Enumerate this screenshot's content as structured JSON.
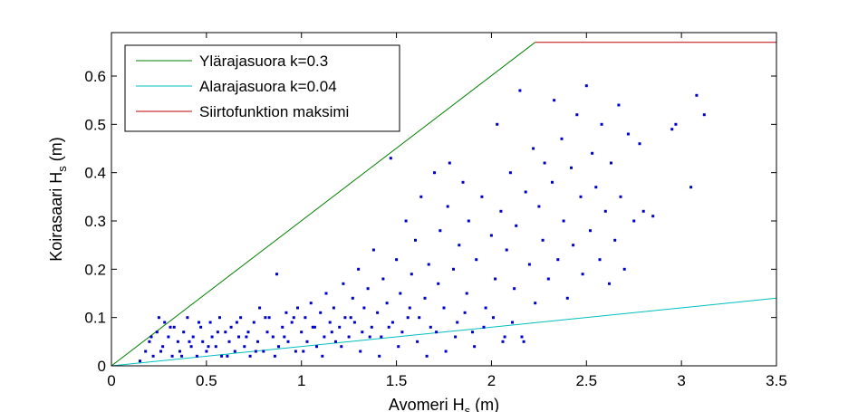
{
  "chart_data": {
    "type": "scatter",
    "title": "",
    "xlabel": "Avomeri H",
    "xlabel_sub": "s",
    "xlabel_unit": " (m)",
    "ylabel": "Koirasaari H",
    "ylabel_sub": "s",
    "ylabel_unit": " (m)",
    "xlim": [
      0,
      3.5
    ],
    "ylim": [
      0,
      0.69
    ],
    "xticks": [
      0,
      0.5,
      1,
      1.5,
      2,
      2.5,
      3,
      3.5
    ],
    "xtick_labels": [
      "0",
      "0.5",
      "1",
      "1.5",
      "2",
      "2.5",
      "3",
      "3.5"
    ],
    "yticks": [
      0,
      0.1,
      0.2,
      0.3,
      0.4,
      0.5,
      0.6
    ],
    "ytick_labels": [
      "0",
      "0.1",
      "0.2",
      "0.3",
      "0.4",
      "0.5",
      "0.6"
    ],
    "grid": false,
    "legend_position": "top-left",
    "legend": [
      {
        "name": "Ylärajasuora k=0.3",
        "color": "#008000"
      },
      {
        "name": "Alarajasuora k=0.04",
        "color": "#00BFBF"
      },
      {
        "name": "Siirtofunktion maksimi",
        "color": "#BF0000"
      }
    ],
    "series": [
      {
        "name": "Ylärajasuora k=0.3",
        "type": "line",
        "color": "#008000",
        "points": [
          [
            0,
            0
          ],
          [
            2.23,
            0.67
          ]
        ]
      },
      {
        "name": "Alarajasuora k=0.04",
        "type": "line",
        "color": "#00BFBF",
        "points": [
          [
            0,
            0
          ],
          [
            3.5,
            0.14
          ]
        ]
      },
      {
        "name": "Siirtofunktion maksimi",
        "type": "line",
        "color": "#BF0000",
        "points": [
          [
            2.23,
            0.67
          ],
          [
            3.5,
            0.67
          ]
        ]
      }
    ],
    "scatter": {
      "color": "#0000CC",
      "points": [
        [
          0.15,
          0.01
        ],
        [
          0.18,
          0.03
        ],
        [
          0.2,
          0.05
        ],
        [
          0.22,
          0.02
        ],
        [
          0.24,
          0.07
        ],
        [
          0.25,
          0.1
        ],
        [
          0.27,
          0.04
        ],
        [
          0.28,
          0.09
        ],
        [
          0.3,
          0.06
        ],
        [
          0.32,
          0.02
        ],
        [
          0.33,
          0.08
        ],
        [
          0.35,
          0.05
        ],
        [
          0.36,
          0.03
        ],
        [
          0.38,
          0.07
        ],
        [
          0.4,
          0.1
        ],
        [
          0.42,
          0.04
        ],
        [
          0.43,
          0.06
        ],
        [
          0.45,
          0.02
        ],
        [
          0.47,
          0.08
        ],
        [
          0.48,
          0.05
        ],
        [
          0.5,
          0.03
        ],
        [
          0.52,
          0.09
        ],
        [
          0.53,
          0.06
        ],
        [
          0.55,
          0.04
        ],
        [
          0.57,
          0.1
        ],
        [
          0.58,
          0.02
        ],
        [
          0.6,
          0.07
        ],
        [
          0.62,
          0.05
        ],
        [
          0.63,
          0.08
        ],
        [
          0.65,
          0.03
        ],
        [
          0.67,
          0.06
        ],
        [
          0.68,
          0.1
        ],
        [
          0.7,
          0.04
        ],
        [
          0.72,
          0.07
        ],
        [
          0.73,
          0.02
        ],
        [
          0.75,
          0.09
        ],
        [
          0.77,
          0.05
        ],
        [
          0.78,
          0.12
        ],
        [
          0.8,
          0.03
        ],
        [
          0.82,
          0.07
        ],
        [
          0.83,
          0.1
        ],
        [
          0.85,
          0.06
        ],
        [
          0.87,
          0.19
        ],
        [
          0.88,
          0.04
        ],
        [
          0.9,
          0.08
        ],
        [
          0.92,
          0.11
        ],
        [
          0.93,
          0.05
        ],
        [
          0.95,
          0.09
        ],
        [
          0.97,
          0.03
        ],
        [
          0.98,
          0.12
        ],
        [
          1.0,
          0.07
        ],
        [
          1.02,
          0.1
        ],
        [
          1.03,
          0.05
        ],
        [
          1.05,
          0.13
        ],
        [
          1.07,
          0.08
        ],
        [
          1.08,
          0.04
        ],
        [
          1.1,
          0.11
        ],
        [
          1.12,
          0.06
        ],
        [
          1.13,
          0.15
        ],
        [
          1.15,
          0.09
        ],
        [
          1.17,
          0.12
        ],
        [
          1.18,
          0.05
        ],
        [
          1.2,
          0.08
        ],
        [
          1.22,
          0.17
        ],
        [
          1.23,
          0.1
        ],
        [
          1.25,
          0.06
        ],
        [
          1.27,
          0.14
        ],
        [
          1.28,
          0.09
        ],
        [
          1.3,
          0.2
        ],
        [
          1.32,
          0.07
        ],
        [
          1.33,
          0.12
        ],
        [
          1.35,
          0.16
        ],
        [
          1.37,
          0.08
        ],
        [
          1.38,
          0.24
        ],
        [
          1.4,
          0.11
        ],
        [
          1.42,
          0.06
        ],
        [
          1.43,
          0.18
        ],
        [
          1.45,
          0.13
        ],
        [
          1.47,
          0.43
        ],
        [
          1.48,
          0.09
        ],
        [
          1.5,
          0.22
        ],
        [
          1.52,
          0.15
        ],
        [
          1.53,
          0.07
        ],
        [
          1.55,
          0.3
        ],
        [
          1.57,
          0.12
        ],
        [
          1.58,
          0.19
        ],
        [
          1.6,
          0.26
        ],
        [
          1.62,
          0.1
        ],
        [
          1.63,
          0.35
        ],
        [
          1.65,
          0.14
        ],
        [
          1.67,
          0.21
        ],
        [
          1.68,
          0.08
        ],
        [
          1.7,
          0.4
        ],
        [
          1.72,
          0.17
        ],
        [
          1.73,
          0.28
        ],
        [
          1.75,
          0.12
        ],
        [
          1.77,
          0.33
        ],
        [
          1.78,
          0.42
        ],
        [
          1.8,
          0.2
        ],
        [
          1.82,
          0.09
        ],
        [
          1.83,
          0.25
        ],
        [
          1.85,
          0.38
        ],
        [
          1.87,
          0.15
        ],
        [
          1.88,
          0.3
        ],
        [
          1.9,
          0.07
        ],
        [
          1.92,
          0.22
        ],
        [
          1.95,
          0.35
        ],
        [
          1.97,
          0.12
        ],
        [
          2.0,
          0.27
        ],
        [
          2.02,
          0.18
        ],
        [
          2.03,
          0.5
        ],
        [
          2.05,
          0.32
        ],
        [
          2.07,
          0.06
        ],
        [
          2.08,
          0.24
        ],
        [
          2.1,
          0.4
        ],
        [
          2.12,
          0.16
        ],
        [
          2.13,
          0.29
        ],
        [
          2.15,
          0.57
        ],
        [
          2.17,
          0.05
        ],
        [
          2.18,
          0.36
        ],
        [
          2.2,
          0.21
        ],
        [
          2.22,
          0.45
        ],
        [
          2.23,
          0.13
        ],
        [
          2.25,
          0.33
        ],
        [
          2.27,
          0.26
        ],
        [
          2.28,
          0.42
        ],
        [
          2.3,
          0.18
        ],
        [
          2.32,
          0.38
        ],
        [
          2.33,
          0.55
        ],
        [
          2.35,
          0.22
        ],
        [
          2.37,
          0.47
        ],
        [
          2.38,
          0.3
        ],
        [
          2.4,
          0.14
        ],
        [
          2.42,
          0.41
        ],
        [
          2.43,
          0.25
        ],
        [
          2.45,
          0.52
        ],
        [
          2.47,
          0.35
        ],
        [
          2.48,
          0.19
        ],
        [
          2.5,
          0.58
        ],
        [
          2.52,
          0.28
        ],
        [
          2.53,
          0.44
        ],
        [
          2.55,
          0.37
        ],
        [
          2.57,
          0.22
        ],
        [
          2.58,
          0.5
        ],
        [
          2.6,
          0.32
        ],
        [
          2.62,
          0.17
        ],
        [
          2.63,
          0.42
        ],
        [
          2.65,
          0.26
        ],
        [
          2.67,
          0.54
        ],
        [
          2.68,
          0.35
        ],
        [
          2.7,
          0.2
        ],
        [
          2.72,
          0.48
        ],
        [
          2.75,
          0.3
        ],
        [
          2.78,
          0.46
        ],
        [
          2.8,
          0.32
        ],
        [
          2.85,
          0.31
        ],
        [
          2.95,
          0.49
        ],
        [
          2.97,
          0.5
        ],
        [
          3.05,
          0.37
        ],
        [
          3.08,
          0.56
        ],
        [
          3.12,
          0.52
        ],
        [
          0.21,
          0.06
        ],
        [
          0.26,
          0.03
        ],
        [
          0.31,
          0.08
        ],
        [
          0.37,
          0.02
        ],
        [
          0.41,
          0.05
        ],
        [
          0.46,
          0.09
        ],
        [
          0.51,
          0.04
        ],
        [
          0.56,
          0.07
        ],
        [
          0.61,
          0.02
        ],
        [
          0.66,
          0.09
        ],
        [
          0.71,
          0.06
        ],
        [
          0.76,
          0.03
        ],
        [
          0.81,
          0.1
        ],
        [
          0.86,
          0.02
        ],
        [
          0.91,
          0.06
        ],
        [
          0.96,
          0.1
        ],
        [
          1.01,
          0.03
        ],
        [
          1.06,
          0.08
        ],
        [
          1.11,
          0.02
        ],
        [
          1.16,
          0.07
        ],
        [
          1.21,
          0.04
        ],
        [
          1.26,
          0.1
        ],
        [
          1.31,
          0.03
        ],
        [
          1.36,
          0.06
        ],
        [
          1.41,
          0.02
        ],
        [
          1.46,
          0.08
        ],
        [
          1.51,
          0.04
        ],
        [
          1.56,
          0.1
        ],
        [
          1.61,
          0.05
        ],
        [
          1.66,
          0.02
        ],
        [
          1.71,
          0.07
        ],
        [
          1.76,
          0.03
        ],
        [
          1.81,
          0.06
        ],
        [
          1.86,
          0.11
        ],
        [
          1.91,
          0.04
        ],
        [
          1.96,
          0.08
        ],
        [
          2.01,
          0.1
        ],
        [
          2.06,
          0.05
        ],
        [
          2.11,
          0.09
        ],
        [
          2.16,
          0.06
        ]
      ]
    }
  }
}
